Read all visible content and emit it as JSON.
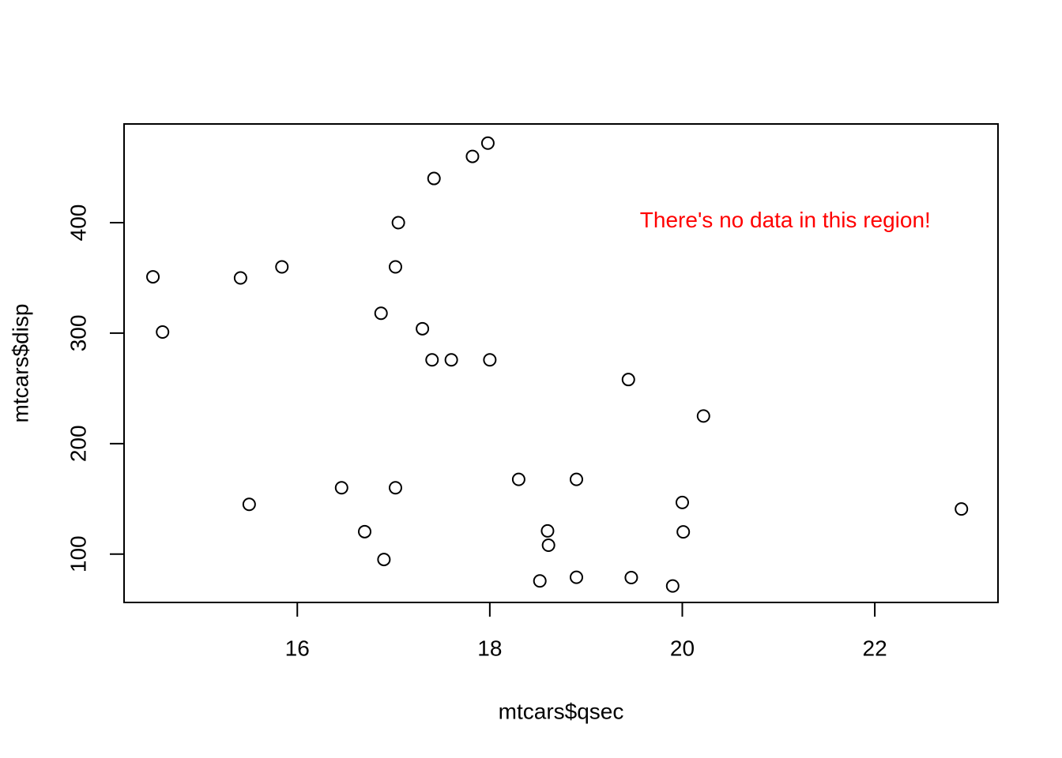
{
  "chart_data": {
    "type": "scatter",
    "title": "",
    "xlabel": "mtcars$qsec",
    "ylabel": "mtcars$disp",
    "xlim": [
      14.2,
      23.28
    ],
    "ylim": [
      56.2,
      489.36
    ],
    "x_ticks": [
      16,
      18,
      20,
      22
    ],
    "x_tick_labels": [
      "16",
      "18",
      "20",
      "22"
    ],
    "y_ticks": [
      100,
      200,
      300,
      400
    ],
    "y_tick_labels": [
      "100",
      "200",
      "300",
      "400"
    ],
    "grid": false,
    "point_style": "open-circle",
    "points": [
      {
        "x": 16.46,
        "y": 160
      },
      {
        "x": 17.02,
        "y": 160
      },
      {
        "x": 18.61,
        "y": 108
      },
      {
        "x": 19.44,
        "y": 258
      },
      {
        "x": 17.02,
        "y": 360
      },
      {
        "x": 20.22,
        "y": 225
      },
      {
        "x": 15.84,
        "y": 360
      },
      {
        "x": 20.0,
        "y": 146.7
      },
      {
        "x": 22.9,
        "y": 140.8
      },
      {
        "x": 18.3,
        "y": 167.6
      },
      {
        "x": 18.9,
        "y": 167.6
      },
      {
        "x": 17.4,
        "y": 275.8
      },
      {
        "x": 17.6,
        "y": 275.8
      },
      {
        "x": 18.0,
        "y": 275.8
      },
      {
        "x": 17.98,
        "y": 472
      },
      {
        "x": 17.82,
        "y": 460
      },
      {
        "x": 17.42,
        "y": 440
      },
      {
        "x": 19.47,
        "y": 78.7
      },
      {
        "x": 18.52,
        "y": 75.7
      },
      {
        "x": 19.9,
        "y": 71.1
      },
      {
        "x": 20.01,
        "y": 120.1
      },
      {
        "x": 16.87,
        "y": 318
      },
      {
        "x": 17.3,
        "y": 304
      },
      {
        "x": 15.41,
        "y": 350
      },
      {
        "x": 17.05,
        "y": 400
      },
      {
        "x": 18.9,
        "y": 79
      },
      {
        "x": 16.7,
        "y": 120.3
      },
      {
        "x": 16.9,
        "y": 95.1
      },
      {
        "x": 14.5,
        "y": 351
      },
      {
        "x": 15.5,
        "y": 145
      },
      {
        "x": 14.6,
        "y": 301
      },
      {
        "x": 18.6,
        "y": 121
      }
    ],
    "annotation": {
      "text": "There's no data in this region!",
      "x": 21.07,
      "y": 401,
      "color": "#ff0000"
    },
    "point_color": "#000000",
    "axis_color": "#000000"
  }
}
